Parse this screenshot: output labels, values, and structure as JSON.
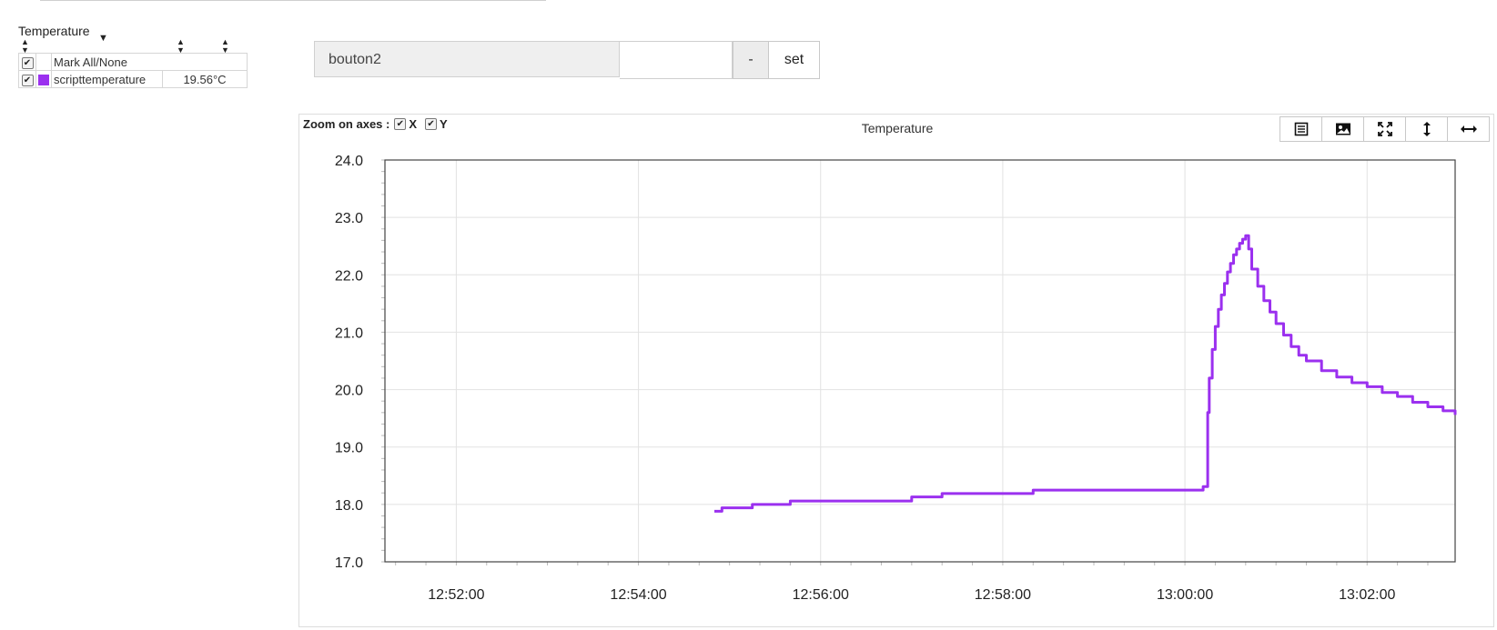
{
  "legend": {
    "title": "Temperature",
    "mark_all_label": "Mark All/None",
    "rows": [
      {
        "name": "scripttemperature",
        "value": "19.56°C",
        "color": "#9b30ef",
        "checked": true
      }
    ]
  },
  "control": {
    "label": "bouton2",
    "input_value": "",
    "minus_label": "-",
    "set_label": "set"
  },
  "chart_toolbar": {
    "zoom_label": "Zoom on axes :",
    "zoom_x_label": "X",
    "zoom_y_label": "Y",
    "icons": [
      "list-icon",
      "image-icon",
      "fullscreen-icon",
      "vertical-resize-icon",
      "horizontal-resize-icon"
    ]
  },
  "chart_data": {
    "type": "line",
    "title": "Temperature",
    "xlabel": "",
    "ylabel": "",
    "grid": true,
    "line_style": "step",
    "xlim": [
      "12:51:13",
      "13:02:58"
    ],
    "ylim": [
      17.0,
      24.0
    ],
    "x_ticks": [
      "12:52:00",
      "12:54:00",
      "12:56:00",
      "12:58:00",
      "13:00:00",
      "13:02:00"
    ],
    "y_ticks": [
      "17.0",
      "18.0",
      "19.0",
      "20.0",
      "21.0",
      "22.0",
      "23.0",
      "24.0"
    ],
    "series": [
      {
        "color": "#9b30ef",
        "x": [
          "12:54:50",
          "12:54:55",
          "12:55:05",
          "12:55:15",
          "12:55:25",
          "12:55:30",
          "12:55:35",
          "12:55:40",
          "12:55:45",
          "12:55:50",
          "12:55:55",
          "12:56:00",
          "12:56:10",
          "12:56:20",
          "12:56:30",
          "12:56:40",
          "12:56:50",
          "12:57:00",
          "12:57:10",
          "12:57:15",
          "12:57:20",
          "12:57:30",
          "12:57:40",
          "12:57:50",
          "12:58:00",
          "12:58:10",
          "12:58:20",
          "12:58:30",
          "12:58:40",
          "12:58:50",
          "12:59:00",
          "12:59:10",
          "12:59:20",
          "12:59:30",
          "12:59:40",
          "12:59:50",
          "13:00:00",
          "13:00:08",
          "13:00:12",
          "13:00:14",
          "13:00:15",
          "13:00:16",
          "13:00:18",
          "13:00:20",
          "13:00:22",
          "13:00:24",
          "13:00:26",
          "13:00:28",
          "13:00:30",
          "13:00:32",
          "13:00:34",
          "13:00:36",
          "13:00:38",
          "13:00:40",
          "13:00:42",
          "13:00:44",
          "13:00:48",
          "13:00:52",
          "13:00:56",
          "13:01:00",
          "13:01:05",
          "13:01:10",
          "13:01:15",
          "13:01:20",
          "13:01:30",
          "13:01:40",
          "13:01:50",
          "13:02:00",
          "13:02:10",
          "13:02:20",
          "13:02:30",
          "13:02:40",
          "13:02:50",
          "13:02:58"
        ],
        "y": [
          17.88,
          17.94,
          17.94,
          18.0,
          18.0,
          18.0,
          18.0,
          18.06,
          18.06,
          18.06,
          18.06,
          18.06,
          18.06,
          18.06,
          18.06,
          18.06,
          18.06,
          18.13,
          18.13,
          18.13,
          18.19,
          18.19,
          18.19,
          18.19,
          18.19,
          18.19,
          18.25,
          18.25,
          18.25,
          18.25,
          18.25,
          18.25,
          18.25,
          18.25,
          18.25,
          18.25,
          18.25,
          18.25,
          18.31,
          18.31,
          19.6,
          20.2,
          20.7,
          21.1,
          21.4,
          21.65,
          21.85,
          22.05,
          22.2,
          22.35,
          22.45,
          22.55,
          22.62,
          22.68,
          22.45,
          22.1,
          21.8,
          21.55,
          21.35,
          21.15,
          20.95,
          20.75,
          20.6,
          20.5,
          20.33,
          20.22,
          20.12,
          20.05,
          19.95,
          19.88,
          19.78,
          19.7,
          19.63,
          19.56
        ]
      }
    ]
  }
}
